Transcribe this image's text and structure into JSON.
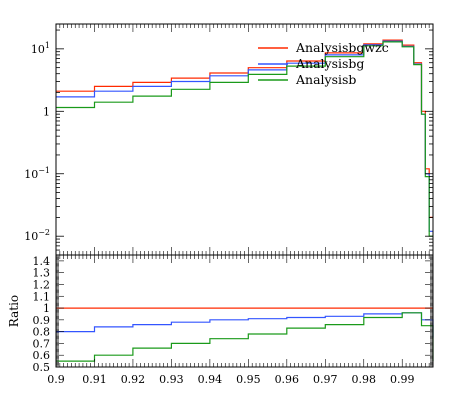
{
  "chart_data": [
    {
      "panel": "main",
      "type": "line",
      "step": true,
      "yscale": "log",
      "xlim": [
        0.9,
        0.998
      ],
      "ylim": [
        0.005,
        25
      ],
      "yticks": [
        {
          "value": 10,
          "label_base": "10",
          "label_exp": "1"
        },
        {
          "value": 1,
          "label_base": "1",
          "label_exp": ""
        },
        {
          "value": 0.1,
          "label_base": "10",
          "label_exp": "−1"
        },
        {
          "value": 0.01,
          "label_base": "10",
          "label_exp": "−2"
        }
      ],
      "legend_position": "top-right",
      "x": [
        0.9,
        0.91,
        0.92,
        0.93,
        0.94,
        0.95,
        0.96,
        0.97,
        0.98,
        0.985,
        0.99,
        0.993,
        0.995,
        0.996,
        0.997,
        0.998
      ],
      "series": [
        {
          "name": "Analysisbgwzc",
          "color": "#ff2a00",
          "values": [
            2.1,
            2.5,
            2.9,
            3.4,
            4.1,
            5.0,
            6.4,
            8.6,
            12.0,
            13.8,
            11.5,
            6.0,
            1.0,
            0.12,
            0.02,
            0.02
          ]
        },
        {
          "name": "Analysisbg",
          "color": "#3355ff",
          "values": [
            1.7,
            2.1,
            2.5,
            3.0,
            3.7,
            4.6,
            5.9,
            8.0,
            11.6,
            13.3,
            11.0,
            5.7,
            0.9,
            0.1,
            0.012,
            0.012
          ]
        },
        {
          "name": "Analysisb",
          "color": "#1a9a1a",
          "values": [
            1.15,
            1.4,
            1.75,
            2.25,
            2.9,
            3.9,
            5.3,
            7.5,
            11.2,
            12.9,
            10.8,
            5.6,
            0.9,
            0.09,
            0.01,
            0.01
          ]
        }
      ]
    },
    {
      "panel": "ratio",
      "type": "line",
      "step": true,
      "ylabel": "Ratio",
      "xlim": [
        0.9,
        0.998
      ],
      "ylim": [
        0.5,
        1.45
      ],
      "yticks": [
        "1.4",
        "1.3",
        "1.2",
        "1.1",
        "1",
        "0.9",
        "0.8",
        "0.7",
        "0.6",
        "0.5"
      ],
      "xticks": [
        "0.9",
        "0.91",
        "0.92",
        "0.93",
        "0.94",
        "0.95",
        "0.96",
        "0.97",
        "0.98",
        "0.99"
      ],
      "x": [
        0.9,
        0.91,
        0.92,
        0.93,
        0.94,
        0.95,
        0.96,
        0.97,
        0.98,
        0.99,
        0.995,
        0.998
      ],
      "series": [
        {
          "name": "Analysisbgwzc",
          "color": "#ff2a00",
          "values": [
            1.0,
            1.0,
            1.0,
            1.0,
            1.0,
            1.0,
            1.0,
            1.0,
            1.0,
            1.0,
            1.0,
            1.0
          ]
        },
        {
          "name": "Analysisbg",
          "color": "#3355ff",
          "values": [
            0.8,
            0.84,
            0.86,
            0.88,
            0.9,
            0.91,
            0.92,
            0.93,
            0.95,
            0.96,
            0.9,
            0.75
          ]
        },
        {
          "name": "Analysisb",
          "color": "#1a9a1a",
          "values": [
            0.55,
            0.6,
            0.66,
            0.7,
            0.74,
            0.78,
            0.83,
            0.86,
            0.92,
            0.96,
            0.85,
            0.55
          ]
        }
      ]
    }
  ]
}
